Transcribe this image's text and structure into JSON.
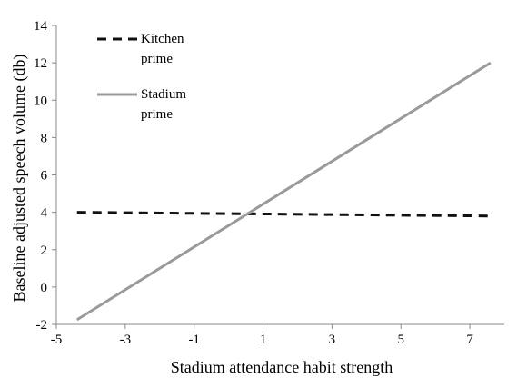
{
  "chart_data": {
    "type": "line",
    "title": "",
    "xlabel": "Stadium attendance habit strength",
    "ylabel": "Baseline adjusted speech volume (db)",
    "xlim": [
      -5,
      8
    ],
    "ylim": [
      -2,
      14
    ],
    "xticks": [
      -5,
      -3,
      -1,
      1,
      3,
      5,
      7
    ],
    "yticks": [
      -2,
      0,
      2,
      4,
      6,
      8,
      10,
      12,
      14
    ],
    "grid": false,
    "legend_position": "top-left",
    "series": [
      {
        "name": "Kitchen prime",
        "name_lines": [
          "Kitchen",
          "prime"
        ],
        "style": "dashed",
        "color": "#111111",
        "x": [
          -4.4,
          7.6
        ],
        "y": [
          4.0,
          3.8
        ]
      },
      {
        "name": "Stadium prime",
        "name_lines": [
          "Stadium",
          "prime"
        ],
        "style": "solid",
        "color": "#9a9a9a",
        "x": [
          -4.4,
          7.6
        ],
        "y": [
          -1.75,
          12.0
        ]
      }
    ]
  }
}
